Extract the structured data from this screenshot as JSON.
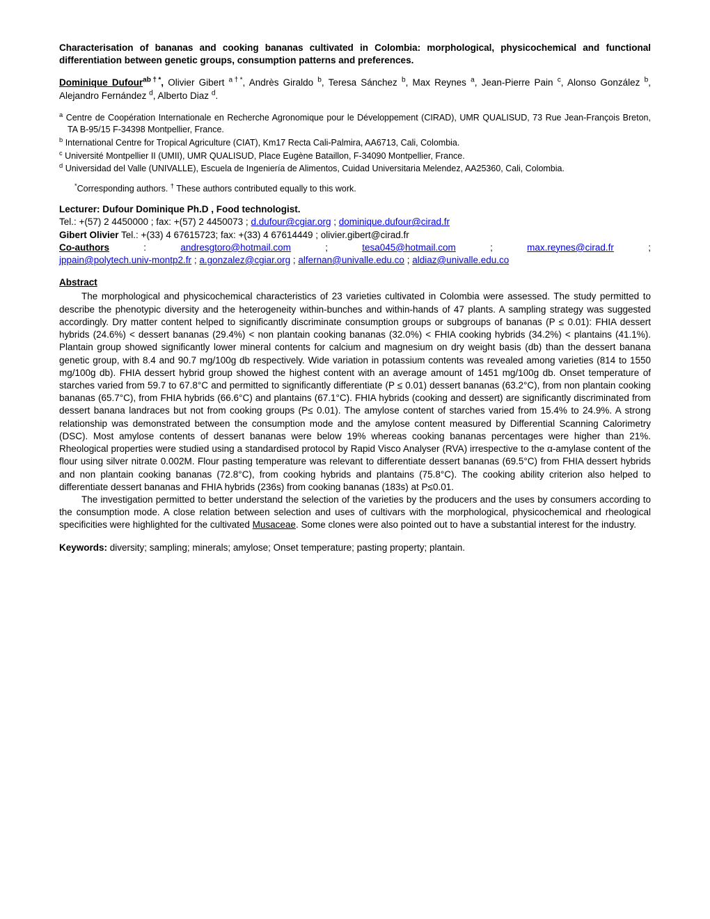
{
  "title": "Characterisation of bananas and cooking bananas cultivated in Colombia: morphological, physicochemical and functional differentiation between genetic groups, consumption patterns and preferences.",
  "authors": {
    "lead_name": "Dominique Dufour",
    "lead_sup": "ab†*",
    "a2": "Olivier Gibert",
    "a2_sup": "a†*",
    "a3": "Andrès Giraldo",
    "a3_sup": "b",
    "a4": "Teresa Sánchez",
    "a4_sup": "b",
    "a5": "Max Reynes",
    "a5_sup": "a",
    "a6": "Jean-Pierre Pain",
    "a6_sup": "c",
    "a7": "Alonso González",
    "a7_sup": "b",
    "a8": "Alejandro Fernández",
    "a8_sup": "d",
    "a9": "Alberto Diaz",
    "a9_sup": "d"
  },
  "affiliations": {
    "a_sup": "a",
    "a_text": " Centre de Coopération Internationale en Recherche Agronomique pour le Développement (CIRAD), UMR QUALISUD, 73 Rue Jean-François Breton, TA B-95/15 F-34398 Montpellier, France.",
    "b_sup": "b",
    "b_text": " International Centre for Tropical Agriculture (CIAT),  Km17 Recta Cali-Palmira, AA6713, Cali, Colombia.",
    "c_sup": "c",
    "c_text": " Université Montpellier II (UMII), UMR QUALISUD, Place Eugène Bataillon, F-34090 Montpellier, France.",
    "d_sup": "d",
    "d_text": " Universidad del Valle (UNIVALLE), Escuela de Ingeniería de Alimentos, Cuidad Universitaria Melendez, AA25360, Cali, Colombia."
  },
  "corresponding": {
    "star": "*",
    "text1": "Corresponding authors. ",
    "dagger": "†",
    "text2": " These authors contributed equally to this work."
  },
  "lecturer": {
    "label": "Lecturer: Dufour Dominique Ph.D , Food technologist.",
    "tel_line_prefix": "Tel.: +(57) 2 4450000 ; fax: +(57) 2 4450073 ; ",
    "email1": "d.dufour@cgiar.org",
    "sep1": " ; ",
    "email2": "dominique.dufour@cirad.fr"
  },
  "gibert": {
    "prefix": "Gibert Olivier",
    "rest": " Tel.: +(33) 4 67615723; fax: +(33) 4 67614449 ; olivier.gibert@cirad.fr"
  },
  "coauthors": {
    "label": "Co-authors",
    "colon": " : ",
    "e1": "andresgtoro@hotmail.com",
    "s1": " ; ",
    "e2": "tesa045@hotmail.com",
    "s2": " ; ",
    "e3": "max.reynes@cirad.fr",
    "s3": " ; ",
    "e4": "jppain@polytech.univ-montp2.fr",
    "s4": " ; ",
    "e5": "a.gonzalez@cgiar.org",
    "s5": " ; ",
    "e6": "alfernan@univalle.edu.co",
    "s6": " ; ",
    "e7": "aldiaz@univalle.edu.co"
  },
  "abstract_heading": "Abstract",
  "abstract_p1_a": "The morphological and physicochemical characteristics of 23 varieties cultivated in Colombia were assessed. The study permitted to describe the phenotypic diversity and the heterogeneity within-bunches and within-hands of 47 plants. A sampling strategy was suggested accordingly. Dry matter content helped to significantly discriminate consumption groups or subgroups of bananas (P ≤ 0.01): FHIA dessert hybrids (24.6%) < dessert bananas (29.4%) < non plantain cooking bananas (32.0%) < FHIA cooking hybrids (34.2%) < plantains (41.1%). Plantain group showed significantly lower mineral contents for calcium and magnesium on dry weight basis (db) than the dessert banana genetic group, with 8.4 and 90.7 mg/100g db respectively. Wide variation in potassium contents was revealed among varieties (814 to 1550 mg/100g db). FHIA dessert hybrid group showed the highest content with an average amount of 1451 mg/100g db. Onset temperature of starches varied from 59.7 to 67.8°C and permitted to significantly differentiate (P ≤ 0.01) dessert bananas (63.2°C), from non plantain cooking bananas (65.7°C), from FHIA hybrids (66.6°C) and plantains (67.1°C). FHIA hybrids (cooking and dessert) are significantly discriminated from dessert banana landraces but not from cooking groups (P≤ 0.01). The amylose content of starches varied from 15.4% to 24.9%. A strong relationship was demonstrated between the consumption mode and the amylose content measured by Differential Scanning Calorimetry (DSC). Most amylose contents of dessert bananas were below 19% whereas cooking bananas percentages were higher than 21%. Rheological properties were studied using a standardised protocol by Rapid Visco Analyser (RVA) irrespective to the α-amylase content of the flour using silver nitrate 0.002M. Flour pasting temperature was relevant to differentiate dessert bananas (69.5°C) from FHIA dessert hybrids and non plantain cooking bananas (72.8°C), from cooking hybrids and plantains (75.8°C). The cooking ability criterion also helped to differentiate dessert bananas and FHIA hybrids (236s) from cooking bananas (183s) at P≤0.01.",
  "abstract_p2_a": "The investigation permitted to better understand the selection of the varieties by the producers and the uses by consumers according to the consumption mode. A close relation between selection and uses of cultivars with the morphological, physicochemical and rheological specificities were highlighted for the cultivated ",
  "abstract_p2_underline": "Musaceae",
  "abstract_p2_b": ". Some clones were also pointed out to have a substantial interest for the industry.",
  "keywords_label": "Keywords:",
  "keywords_text": " diversity; sampling; minerals; amylose; Onset temperature; pasting property; plantain."
}
